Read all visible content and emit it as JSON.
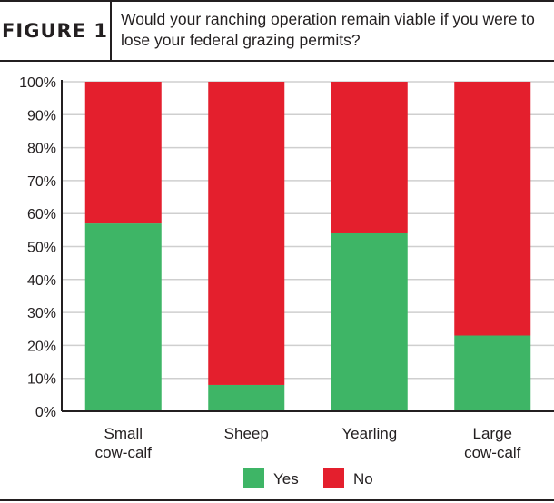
{
  "header": {
    "figure_label": "FIGURE 1",
    "question": "Would your ranching operation remain viable if you were to lose your federal grazing permits?"
  },
  "colors": {
    "yes": "#3eb566",
    "no": "#e41f2d",
    "gridline": "#cfcfcf",
    "axis": "#231f20"
  },
  "chart_data": {
    "type": "bar",
    "stacked": true,
    "categories": [
      [
        "Small",
        "cow-calf"
      ],
      [
        "Sheep"
      ],
      [
        "Yearling"
      ],
      [
        "Large",
        "cow-calf"
      ]
    ],
    "series": [
      {
        "name": "Yes",
        "values": [
          57,
          8,
          54,
          23
        ]
      },
      {
        "name": "No",
        "values": [
          43,
          92,
          46,
          77
        ]
      }
    ],
    "ylim": [
      0,
      100
    ],
    "yticks": [
      "0%",
      "10%",
      "20%",
      "30%",
      "40%",
      "50%",
      "60%",
      "70%",
      "80%",
      "90%",
      "100%"
    ],
    "grid": true,
    "legend_position": "bottom"
  },
  "legend": [
    {
      "label": "Yes",
      "color_key": "yes"
    },
    {
      "label": "No",
      "color_key": "no"
    }
  ]
}
